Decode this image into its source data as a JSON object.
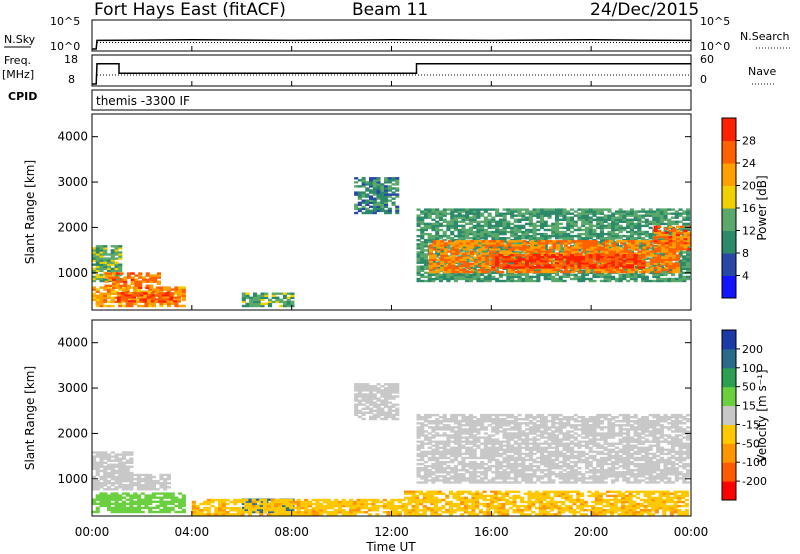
{
  "header": {
    "station": "Fort Hays East (fitACF)",
    "beam": "Beam 11",
    "date": "24/Dec/2015"
  },
  "labels": {
    "nsky": "N.Sky",
    "nsearch": "N.Search",
    "freq_top": "Freq.",
    "freq_unit": "[MHz]",
    "nave": "Nave",
    "cpid": "CPID",
    "program": "themis -3300 IF",
    "pow_y": "10^5",
    "pow_y0": "10^0",
    "time_axis": "Time UT",
    "slant_range": "Slant Range [km]",
    "power": "Power [dB]",
    "velocity": "Velocity [m s⁻¹]"
  },
  "chart_data": [
    {
      "type": "line",
      "name": "noise-panel",
      "ylim_log": [
        0,
        5
      ],
      "ytick_labels": [
        "10^0",
        "10^5"
      ],
      "series": [
        {
          "name": "N.Sky",
          "style": "solid",
          "x": [
            "00:00",
            "00:10",
            "00:12",
            "04:00",
            "08:00",
            "12:00",
            "16:00",
            "20:00",
            "24:00"
          ],
          "y": [
            0,
            0,
            1.6,
            1.7,
            1.6,
            1.7,
            1.6,
            1.7,
            1.6
          ]
        },
        {
          "name": "N.Search",
          "style": "dotted",
          "x": [
            "00:12",
            "04:00",
            "08:00",
            "12:00",
            "16:00",
            "20:00",
            "24:00"
          ],
          "y": [
            1.2,
            1.2,
            1.2,
            1.2,
            1.2,
            1.2,
            1.2
          ]
        }
      ]
    },
    {
      "type": "line",
      "name": "freq-nave-panel",
      "freq_ylim": [
        8,
        18
      ],
      "nave_ylim": [
        0,
        60
      ],
      "freq_ticks": [
        8,
        18
      ],
      "nave_ticks": [
        0,
        60
      ],
      "series": [
        {
          "name": "Freq.",
          "style": "solid",
          "x": [
            "00:00",
            "00:10",
            "00:12",
            "01:05",
            "01:05",
            "13:00",
            "13:00",
            "24:00"
          ],
          "y": [
            8,
            8,
            15.5,
            15.5,
            12,
            12,
            15.5,
            15.5
          ]
        },
        {
          "name": "Nave",
          "style": "dotted",
          "x": [
            "00:12",
            "24:00"
          ],
          "y": [
            20,
            20
          ]
        }
      ]
    },
    {
      "type": "heatmap",
      "name": "power-panel",
      "xlabel": "",
      "ylabel": "Slant Range [km]",
      "xlim_hours": [
        0,
        24
      ],
      "ylim_km": [
        180,
        4500
      ],
      "yticks": [
        1000,
        2000,
        3000,
        4000
      ],
      "colorbar": {
        "label": "Power [dB]",
        "levels": [
          0,
          4,
          8,
          12,
          16,
          20,
          24,
          28,
          32
        ],
        "tick_labels": [
          "4",
          "8",
          "12",
          "16",
          "20",
          "24",
          "28"
        ],
        "colors": [
          "#1414ff",
          "#2848a8",
          "#2c8a6a",
          "#5aa86a",
          "#f0d000",
          "#ffa000",
          "#ff6000",
          "#ff2000"
        ]
      },
      "regions": [
        {
          "t0": 0.0,
          "t1": 1.2,
          "r0": 800,
          "r1": 1600,
          "value": 14
        },
        {
          "t0": 0.0,
          "t1": 3.7,
          "r0": 250,
          "r1": 700,
          "value": 22
        },
        {
          "t0": 0.5,
          "t1": 2.7,
          "r0": 650,
          "r1": 1000,
          "value": 25
        },
        {
          "t0": 1.0,
          "t1": 3.5,
          "r0": 350,
          "r1": 550,
          "value": 27
        },
        {
          "t0": 6.0,
          "t1": 8.0,
          "r0": 250,
          "r1": 550,
          "value": 13
        },
        {
          "t0": 10.5,
          "t1": 12.3,
          "r0": 2300,
          "r1": 3100,
          "value": 10
        },
        {
          "t0": 13.0,
          "t1": 23.8,
          "r0": 800,
          "r1": 2400,
          "value": 12
        },
        {
          "t0": 13.5,
          "t1": 23.5,
          "r0": 1000,
          "r1": 1700,
          "value": 24
        },
        {
          "t0": 16.0,
          "t1": 22.0,
          "r0": 1100,
          "r1": 1400,
          "value": 29
        },
        {
          "t0": 22.5,
          "t1": 23.9,
          "r0": 1500,
          "r1": 2000,
          "value": 25
        }
      ]
    },
    {
      "type": "heatmap",
      "name": "velocity-panel",
      "xlabel": "Time UT",
      "ylabel": "Slant Range [km]",
      "xlim_hours": [
        0,
        24
      ],
      "ylim_km": [
        180,
        4500
      ],
      "xticks": [
        "00:00",
        "04:00",
        "08:00",
        "12:00",
        "16:00",
        "20:00",
        "00:00"
      ],
      "yticks": [
        1000,
        2000,
        3000,
        4000
      ],
      "colorbar": {
        "label": "Velocity [m s⁻¹]",
        "levels": [
          -250,
          -200,
          -100,
          -50,
          -15,
          15,
          50,
          100,
          200,
          250
        ],
        "tick_labels": [
          "-200",
          "-100",
          "-50",
          "-15",
          "15",
          "50",
          "100",
          "200"
        ],
        "colors": [
          "#ff0000",
          "#ff5a00",
          "#ff9600",
          "#ffc800",
          "#c8c8c8",
          "#6ad040",
          "#2ca050",
          "#2a6a8a",
          "#1a3aa8"
        ]
      },
      "regions": [
        {
          "t0": 0.0,
          "t1": 1.5,
          "r0": 750,
          "r1": 1600,
          "value": 0
        },
        {
          "t0": 0.0,
          "t1": 3.7,
          "r0": 250,
          "r1": 700,
          "value": 35
        },
        {
          "t0": 1.2,
          "t1": 3.0,
          "r0": 750,
          "r1": 1100,
          "value": 0
        },
        {
          "t0": 6.0,
          "t1": 8.0,
          "r0": 250,
          "r1": 550,
          "value": 120
        },
        {
          "t0": 4.0,
          "t1": 12.5,
          "r0": 200,
          "r1": 550,
          "value": -40
        },
        {
          "t0": 10.5,
          "t1": 12.3,
          "r0": 2300,
          "r1": 3100,
          "value": 0
        },
        {
          "t0": 13.0,
          "t1": 23.8,
          "r0": 900,
          "r1": 2400,
          "value": 0
        },
        {
          "t0": 12.5,
          "t1": 23.8,
          "r0": 200,
          "r1": 700,
          "value": -40
        }
      ]
    }
  ]
}
